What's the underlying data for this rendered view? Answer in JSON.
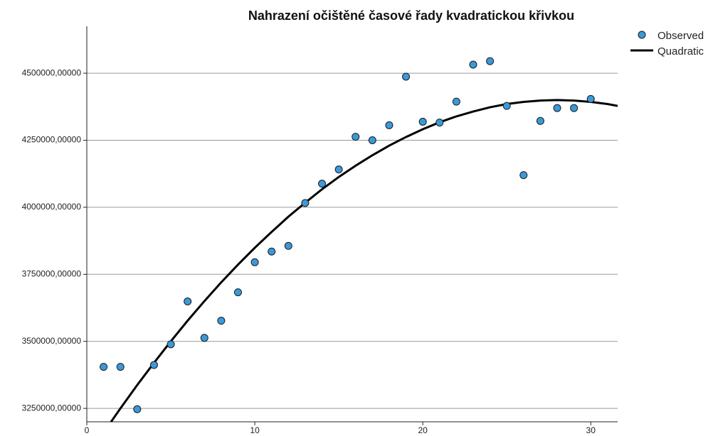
{
  "chart_data": {
    "type": "scatter",
    "title": "Nahrazení očištěné časové řady kvadratickou křivkou",
    "xlim": [
      0,
      31.6
    ],
    "ylim": [
      3200000,
      4675000
    ],
    "xticks": [
      0,
      10,
      20,
      30
    ],
    "yticks": [
      {
        "value": 3250000,
        "label": "3250000,00000"
      },
      {
        "value": 3500000,
        "label": "3500000,00000"
      },
      {
        "value": 3750000,
        "label": "3750000,00000"
      },
      {
        "value": 4000000,
        "label": "4000000,00000"
      },
      {
        "value": 4250000,
        "label": "4250000,00000"
      },
      {
        "value": 4500000,
        "label": "4500000,00000"
      }
    ],
    "grid": true,
    "legend": "right",
    "series": [
      {
        "name": "Observed",
        "color": "#3a9ad9",
        "mode": "markers",
        "x": [
          1,
          2,
          3,
          4,
          5,
          6,
          7,
          8,
          9,
          10,
          11,
          12,
          13,
          14,
          15,
          16,
          17,
          18,
          19,
          20,
          21,
          22,
          23,
          24,
          25,
          26,
          27,
          28,
          29,
          30
        ],
        "values": [
          3405000,
          3405000,
          3247000,
          3412000,
          3489000,
          3649000,
          3513000,
          3577000,
          3683000,
          3795000,
          3835000,
          3856000,
          4016000,
          4088000,
          4141000,
          4263000,
          4250000,
          4306000,
          4487000,
          4319000,
          4316000,
          4394000,
          4532000,
          4545000,
          4378000,
          4120000,
          4322000,
          4370000,
          4370000,
          4404000
        ]
      },
      {
        "name": "Quadratic",
        "color": "#000000",
        "mode": "line",
        "x": [
          1,
          2,
          3,
          4,
          5,
          6,
          7,
          8,
          9,
          10,
          11,
          12,
          13,
          14,
          15,
          16,
          17,
          18,
          19,
          20,
          21,
          22,
          23,
          24,
          25,
          26,
          27,
          28,
          29,
          30,
          31,
          31.6
        ],
        "values": [
          3160000,
          3250000,
          3337000,
          3420000,
          3500000,
          3577000,
          3650000,
          3720000,
          3786000,
          3849000,
          3908000,
          3965000,
          4017000,
          4067000,
          4113000,
          4155000,
          4194000,
          4230000,
          4262000,
          4291000,
          4317000,
          4339000,
          4357000,
          4373000,
          4385000,
          4393000,
          4398000,
          4400000,
          4398000,
          4393000,
          4385000,
          4378000
        ]
      }
    ]
  }
}
